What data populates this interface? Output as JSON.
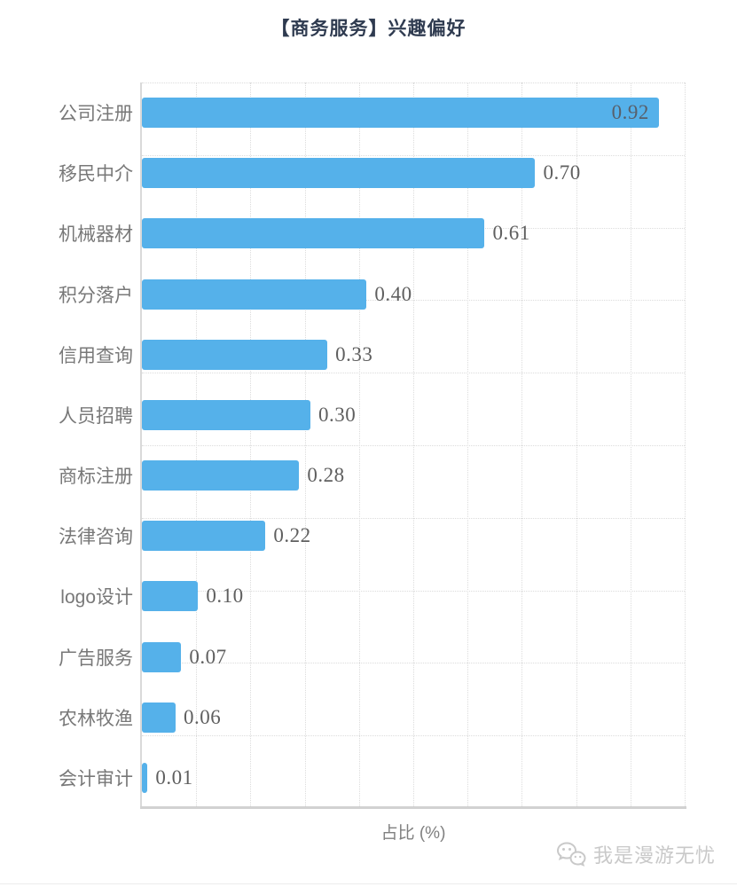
{
  "title": "【商务服务】兴趣偏好",
  "chart_data": {
    "type": "bar",
    "orientation": "horizontal",
    "title": "【商务服务】兴趣偏好",
    "categories": [
      "公司注册",
      "移民中介",
      "机械器材",
      "积分落户",
      "信用查询",
      "人员招聘",
      "商标注册",
      "法律咨询",
      "logo设计",
      "广告服务",
      "农林牧渔",
      "会计审计"
    ],
    "values": [
      0.92,
      0.7,
      0.61,
      0.4,
      0.33,
      0.3,
      0.28,
      0.22,
      0.1,
      0.07,
      0.06,
      0.01
    ],
    "value_labels": [
      "0.92",
      "0.70",
      "0.61",
      "0.40",
      "0.33",
      "0.30",
      "0.28",
      "0.22",
      "0.10",
      "0.07",
      "0.06",
      "0.01"
    ],
    "xlabel": "占比 (%)",
    "ylabel": "",
    "xlim": [
      0,
      0.966
    ],
    "grid": "dotted, 10 equal divisions on both axes",
    "legend": "none",
    "bar_color": "#55b1ea"
  },
  "colors": {
    "bar": "#55b1ea",
    "title_text": "#2f3b50",
    "category_text": "#787878",
    "value_text": "#5f5f5f",
    "axis_line": "#d2d2d2",
    "grid_line": "#dcdcdc",
    "watermark_text": "#c9c9c9"
  },
  "watermark": {
    "text": "我是漫游无忧",
    "icon": "wechat-icon"
  }
}
